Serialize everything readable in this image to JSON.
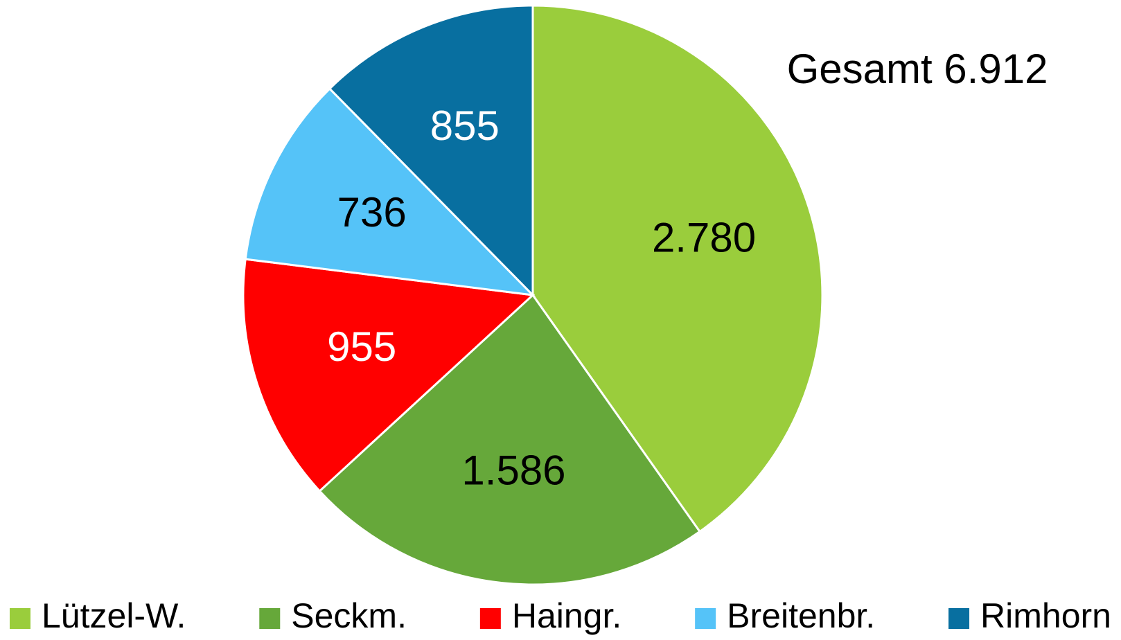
{
  "chart_data": {
    "type": "pie",
    "annotation": "Gesamt 6.912",
    "categories": [
      "Lützel-W.",
      "Seckm.",
      "Haingr.",
      "Breitenbr.",
      "Rimhorn"
    ],
    "values": [
      2780,
      1586,
      955,
      736,
      855
    ],
    "value_labels": [
      "2.780",
      "1.586",
      "955",
      "736",
      "855"
    ],
    "colors": [
      "#9acd3c",
      "#66a83a",
      "#ff0000",
      "#55c3f8",
      "#086fa0"
    ],
    "value_label_colors": [
      "#000000",
      "#000000",
      "#ffffff",
      "#000000",
      "#ffffff"
    ],
    "legend": "bottom"
  }
}
